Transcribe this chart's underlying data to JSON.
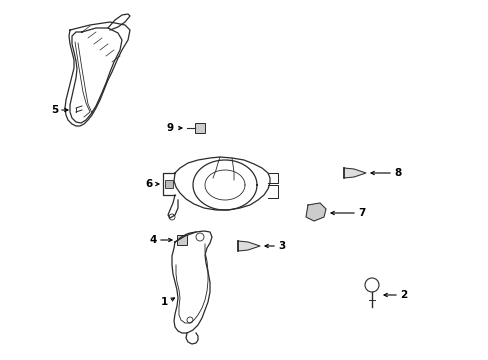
{
  "bg_color": "#ffffff",
  "line_color": "#2a2a2a",
  "label_color": "#000000",
  "figsize": [
    4.89,
    3.6
  ],
  "dpi": 100,
  "lw": 0.9
}
